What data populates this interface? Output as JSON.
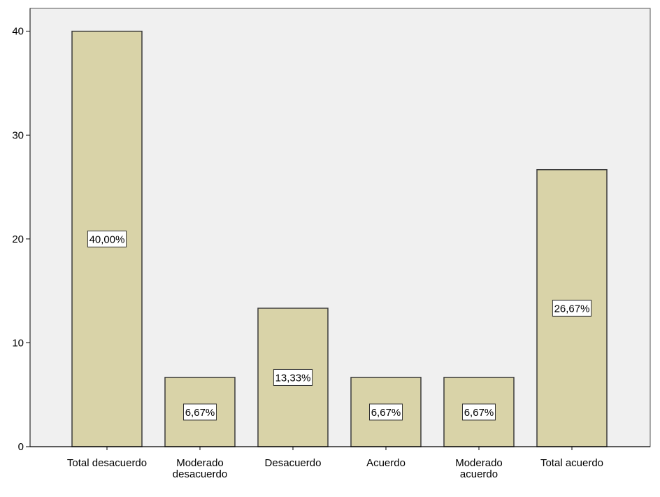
{
  "chart_data": {
    "type": "bar",
    "categories": [
      [
        "Total desacuerdo"
      ],
      [
        "Moderado",
        "desacuerdo"
      ],
      [
        "Desacuerdo"
      ],
      [
        "Acuerdo"
      ],
      [
        "Moderado",
        "acuerdo"
      ],
      [
        "Total acuerdo"
      ]
    ],
    "values": [
      40.0,
      6.67,
      13.33,
      6.67,
      6.67,
      26.67
    ],
    "data_labels": [
      "40,00%",
      "6,67%",
      "13,33%",
      "6,67%",
      "6,67%",
      "26,67%"
    ],
    "y_ticks": [
      0,
      10,
      20,
      30,
      40
    ],
    "ylim": [
      0,
      42.2
    ],
    "title": "",
    "xlabel": "",
    "ylabel": "",
    "grid": false,
    "colors": {
      "bar_fill": "#d9d3a8",
      "bar_stroke": "#3a3a3a",
      "plot_background": "#f0f0f0",
      "axis": "#000000",
      "label_box_fill": "#ffffff",
      "label_box_stroke": "#333333"
    }
  }
}
